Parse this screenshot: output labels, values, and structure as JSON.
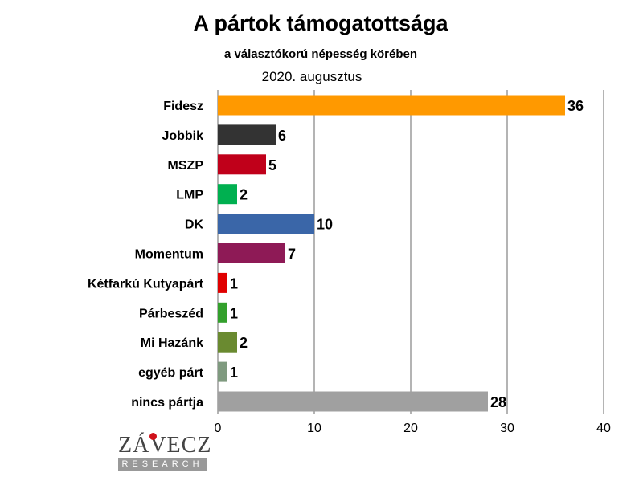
{
  "chart_data": {
    "type": "bar",
    "orientation": "horizontal",
    "title": "A pártok támogatottsága",
    "subtitle": "a választókorú népesség körében",
    "date": "2020. augusztus",
    "categories": [
      "Fidesz",
      "Jobbik",
      "MSZP",
      "LMP",
      "DK",
      "Momentum",
      "Kétfarkú Kutyapárt",
      "Párbeszéd",
      "Mi Hazánk",
      "egyéb párt",
      "nincs pártja"
    ],
    "values": [
      36,
      6,
      5,
      2,
      10,
      7,
      1,
      1,
      2,
      1,
      28
    ],
    "colors": [
      "#ff9900",
      "#333333",
      "#c0001a",
      "#00b050",
      "#3a66a8",
      "#8e1a56",
      "#e00000",
      "#33a02c",
      "#6a8a30",
      "#7f9a7f",
      "#a0a0a0"
    ],
    "xlim": [
      0,
      40
    ],
    "xticks": [
      0,
      10,
      20,
      30,
      40
    ],
    "grid": true,
    "xlabel": "",
    "ylabel": ""
  },
  "logo": {
    "name": "ZÁVECZ",
    "sub": "RESEARCH"
  }
}
